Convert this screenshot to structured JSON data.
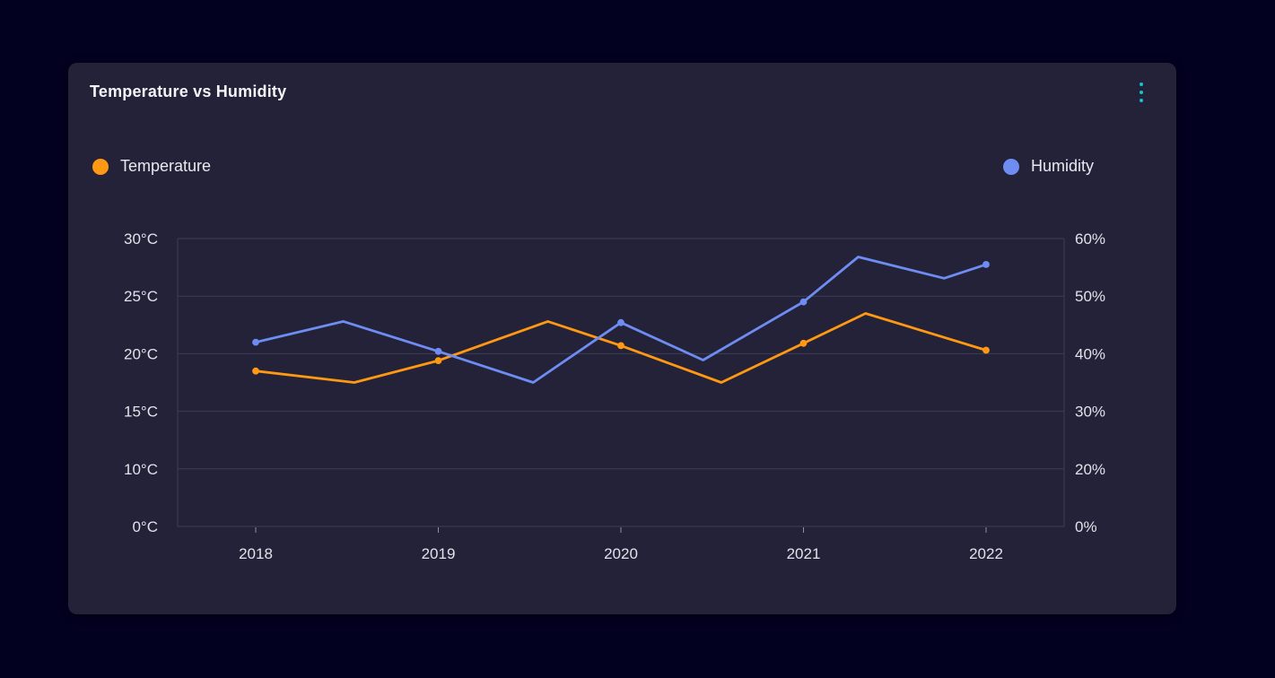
{
  "card": {
    "title": "Temperature vs Humidity",
    "menu_icon": "kebab-vertical-icon"
  },
  "legend": [
    {
      "label": "Temperature",
      "color": "#ff9812",
      "position": "left"
    },
    {
      "label": "Humidity",
      "color": "#6e8cf2",
      "position": "right"
    }
  ],
  "colors": {
    "page_bg": "#030120",
    "card_bg": "#242238",
    "grid_color": "#3e3d56",
    "axis_text": "#e2e2ea",
    "title_color": "#f4f4f8",
    "legend_text": "#e8e8f0",
    "tick_color": "#8f8fa3",
    "menu_color": "#17c3c8"
  },
  "chart_data": {
    "type": "line",
    "title": "Temperature vs Humidity",
    "grid": "horizontal",
    "legend_position": "top",
    "x_ticks": [
      2018,
      2019,
      2020,
      2021,
      2022
    ],
    "left_axis": {
      "unit": "°C",
      "tick_values": [
        0,
        10,
        15,
        20,
        25,
        30
      ],
      "tick_labels": [
        "0°C",
        "10°C",
        "15°C",
        "20°C",
        "25°C",
        "30°C"
      ]
    },
    "right_axis": {
      "unit": "%",
      "tick_values": [
        0,
        20,
        30,
        40,
        50,
        60
      ],
      "tick_labels": [
        "0%",
        "20%",
        "30%",
        "40%",
        "50%",
        "60%"
      ]
    },
    "series": [
      {
        "name": "Temperature",
        "color": "#ff9812",
        "axis": "left",
        "unit": "°C",
        "markers_at": [
          2018,
          2019,
          2020,
          2021,
          2022
        ],
        "points": [
          [
            2018.0,
            18.5
          ],
          [
            2018.54,
            17.5
          ],
          [
            2019.0,
            19.4
          ],
          [
            2019.6,
            22.8
          ],
          [
            2020.0,
            20.7
          ],
          [
            2020.55,
            17.5
          ],
          [
            2021.0,
            20.9
          ],
          [
            2021.34,
            23.5
          ],
          [
            2022.0,
            20.3
          ]
        ]
      },
      {
        "name": "Humidity",
        "color": "#6e8cf2",
        "axis": "right",
        "unit": "%",
        "markers_at": [
          2018,
          2019,
          2020,
          2021,
          2022
        ],
        "points": [
          [
            2018.0,
            42.0
          ],
          [
            2018.48,
            45.6
          ],
          [
            2019.0,
            40.4
          ],
          [
            2019.52,
            35.0
          ],
          [
            2020.0,
            45.4
          ],
          [
            2020.45,
            38.9
          ],
          [
            2021.0,
            49.0
          ],
          [
            2021.3,
            56.8
          ],
          [
            2021.77,
            53.1
          ],
          [
            2022.0,
            55.5
          ]
        ]
      }
    ]
  }
}
